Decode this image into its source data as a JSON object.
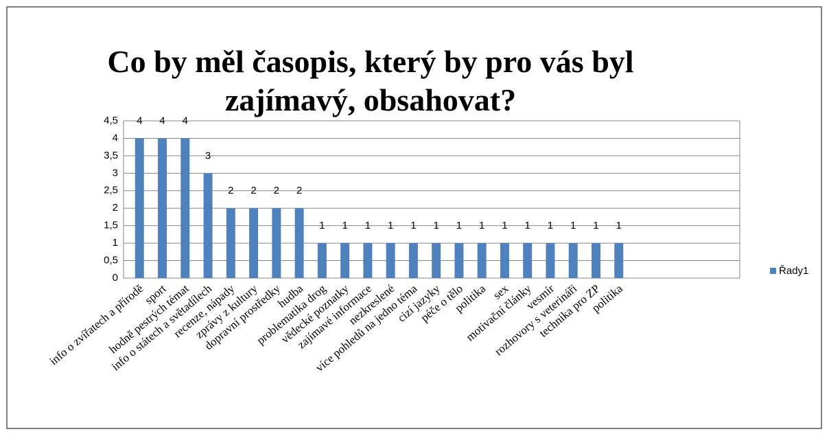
{
  "chart_data": {
    "type": "bar",
    "title": "Co by měl časopis, který by pro vás byl zajímavý, obsahovat?",
    "categories": [
      "info o zvířatech a přírodě",
      "sport",
      "hodně pestrých témat",
      "info o státech a světadílech",
      "recenze, nápady",
      "zprávy z kultury",
      "dopravní prostředky",
      "hudba",
      "problematika drog",
      "vědecké poznatky",
      "zajímavé informace",
      "nezkreslené",
      "více pohledů na jedno téma",
      "cizí jazyky",
      "péče o tělo",
      "politika",
      "sex",
      "motivační články",
      "vesmír",
      "rozhovory s veterináři",
      "technika pro ZP",
      "politika",
      null,
      null,
      null,
      null,
      null
    ],
    "series": [
      {
        "name": "Řady1",
        "color": "#4f81bd",
        "values": [
          4,
          4,
          4,
          3,
          2,
          2,
          2,
          2,
          1,
          1,
          1,
          1,
          1,
          1,
          1,
          1,
          1,
          1,
          1,
          1,
          1,
          1,
          null,
          null,
          null,
          null,
          null
        ]
      }
    ],
    "ylim": [
      0,
      4.5
    ],
    "yticks": [
      0,
      {
        "value": 0.5,
        "label": "0,5"
      },
      1,
      {
        "value": 1.5,
        "label": "1,5"
      },
      2,
      {
        "value": 2.5,
        "label": "2,5"
      },
      3,
      {
        "value": 3.5,
        "label": "3,5"
      },
      4,
      {
        "value": 4.5,
        "label": "4,5"
      }
    ],
    "grid": true,
    "legend": "right"
  }
}
